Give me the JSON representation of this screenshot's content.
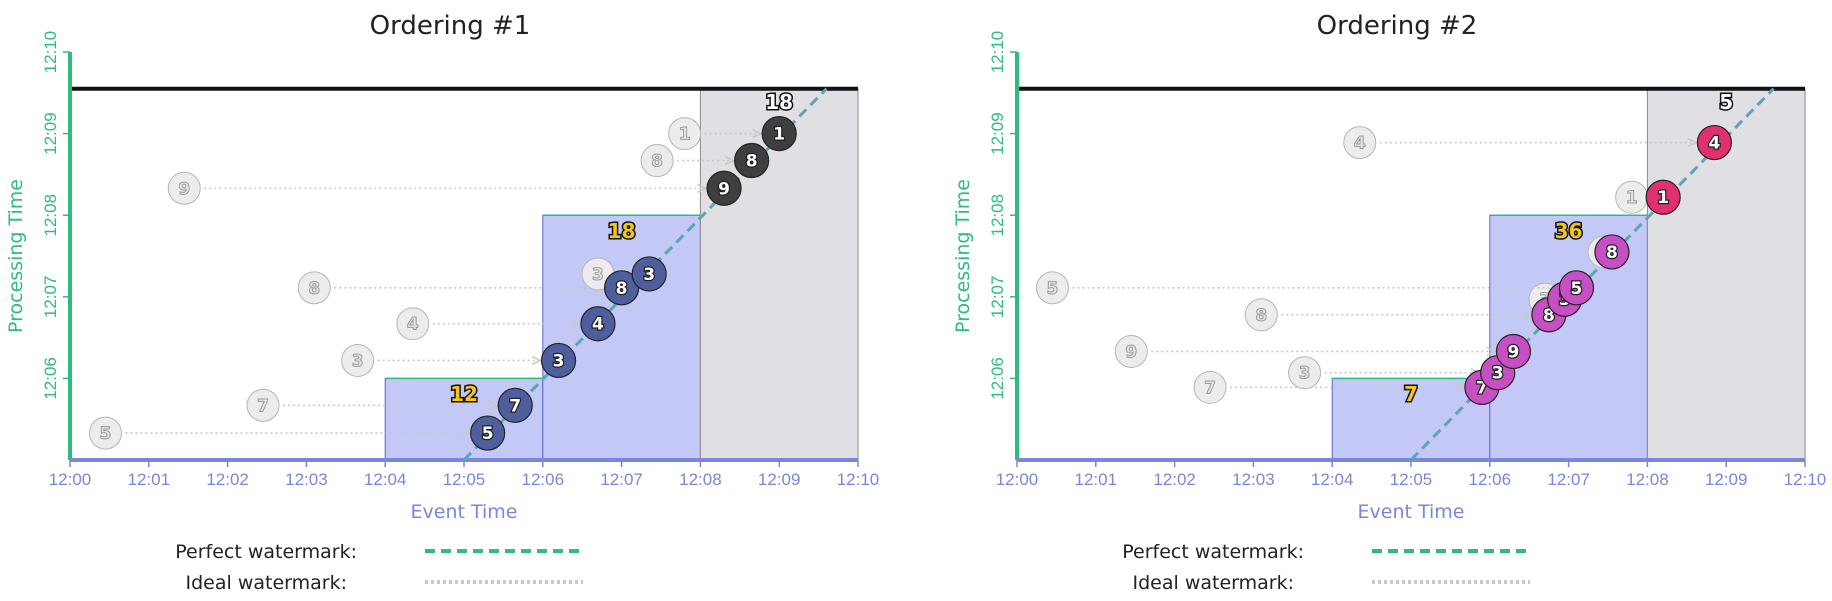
{
  "legend": {
    "perfect_label": "Perfect watermark:",
    "ideal_label": "Ideal watermark:",
    "perfect_color": "#2dbb7f",
    "ideal_color": "#c8c8c8"
  },
  "colors": {
    "processing_axis": "#2dbb7f",
    "event_axis": "#7a86dd",
    "window_fill": "#c3c8f7",
    "window_stroke": "#5a67c8",
    "late_window_fill": "#e0dfe3",
    "ghost_fill": "#ececec",
    "ghost_stroke": "#b5b5b5",
    "sum_color": "#f5c518"
  },
  "chart_data": [
    {
      "type": "scatter",
      "title": "Ordering #1",
      "xlabel": "Event Time",
      "ylabel": "Processing Time",
      "xticks": [
        "12:00",
        "12:01",
        "12:02",
        "12:03",
        "12:04",
        "12:05",
        "12:06",
        "12:07",
        "12:08",
        "12:09",
        "12:10"
      ],
      "yticks": [
        "12:06",
        "12:07",
        "12:08",
        "12:09",
        "12:10"
      ],
      "xlim": [
        0,
        10
      ],
      "ylim": [
        5,
        10
      ],
      "windows": [
        {
          "x0": 4,
          "x1": 6,
          "top": 6.0,
          "sum": "12",
          "sum_x": 5.0,
          "sum_y": 5.72,
          "color": "#f5c518",
          "late": false
        },
        {
          "x0": 6,
          "x1": 8,
          "top": 8.0,
          "sum": "18",
          "sum_x": 7.0,
          "sum_y": 7.72,
          "color": "#f5c518",
          "late": false
        },
        {
          "x0": 8,
          "x1": 10,
          "top": 9.55,
          "sum": "18",
          "sum_x": 9.0,
          "sum_y": 9.3,
          "color": "#ffffff",
          "late": true
        }
      ],
      "watermark": [
        [
          5.0,
          5.0
        ],
        [
          9.6,
          9.55
        ]
      ],
      "bar_y": 9.55,
      "points": [
        {
          "value": "5",
          "x": 5.3,
          "y": 5.33,
          "gx": 0.45,
          "gy": 5.33,
          "fill": "#4f5f9e"
        },
        {
          "value": "7",
          "x": 5.65,
          "y": 5.67,
          "gx": 2.45,
          "gy": 5.67,
          "fill": "#4f5f9e"
        },
        {
          "value": "3",
          "x": 6.2,
          "y": 6.22,
          "gx": 3.65,
          "gy": 6.22,
          "fill": "#4f5f9e"
        },
        {
          "value": "4",
          "x": 6.7,
          "y": 6.67,
          "gx": 4.35,
          "gy": 6.67,
          "fill": "#4f5f9e"
        },
        {
          "value": "8",
          "x": 7.0,
          "y": 7.11,
          "gx": 3.1,
          "gy": 7.11,
          "fill": "#4f5f9e"
        },
        {
          "value": "3",
          "x": 7.35,
          "y": 7.28,
          "gx": 6.7,
          "gy": 7.28,
          "fill": "#4f5f9e"
        },
        {
          "value": "9",
          "x": 8.3,
          "y": 8.33,
          "gx": 1.45,
          "gy": 8.33,
          "fill": "#3f3f3f"
        },
        {
          "value": "8",
          "x": 8.65,
          "y": 8.67,
          "gx": 7.45,
          "gy": 8.67,
          "fill": "#3f3f3f"
        },
        {
          "value": "1",
          "x": 9.0,
          "y": 9.0,
          "gx": 7.8,
          "gy": 9.0,
          "fill": "#3f3f3f"
        }
      ]
    },
    {
      "type": "scatter",
      "title": "Ordering #2",
      "xlabel": "Event Time",
      "ylabel": "Processing Time",
      "xticks": [
        "12:00",
        "12:01",
        "12:02",
        "12:03",
        "12:04",
        "12:05",
        "12:06",
        "12:07",
        "12:08",
        "12:09",
        "12:10"
      ],
      "yticks": [
        "12:06",
        "12:07",
        "12:08",
        "12:09",
        "12:10"
      ],
      "xlim": [
        0,
        10
      ],
      "ylim": [
        5,
        10
      ],
      "windows": [
        {
          "x0": 4,
          "x1": 6,
          "top": 6.0,
          "sum": "7",
          "sum_x": 5.0,
          "sum_y": 5.72,
          "color": "#f5c518",
          "late": false
        },
        {
          "x0": 6,
          "x1": 8,
          "top": 8.0,
          "sum": "36",
          "sum_x": 7.0,
          "sum_y": 7.72,
          "color": "#f5c518",
          "late": false
        },
        {
          "x0": 8,
          "x1": 10,
          "top": 9.55,
          "sum": "5",
          "sum_x": 9.0,
          "sum_y": 9.3,
          "color": "#ffffff",
          "late": true
        }
      ],
      "watermark": [
        [
          5.0,
          5.0
        ],
        [
          9.6,
          9.55
        ]
      ],
      "bar_y": 9.55,
      "points": [
        {
          "value": "7",
          "x": 5.9,
          "y": 5.89,
          "gx": 2.45,
          "gy": 5.89,
          "fill": "#c74fc4"
        },
        {
          "value": "3",
          "x": 6.1,
          "y": 6.07,
          "gx": 3.65,
          "gy": 6.07,
          "fill": "#c74fc4"
        },
        {
          "value": "9",
          "x": 6.3,
          "y": 6.33,
          "gx": 1.45,
          "gy": 6.33,
          "fill": "#c74fc4"
        },
        {
          "value": "8",
          "x": 6.75,
          "y": 6.78,
          "gx": 3.1,
          "gy": 6.78,
          "fill": "#c74fc4"
        },
        {
          "value": "3",
          "x": 6.95,
          "y": 6.97,
          "gx": 6.7,
          "gy": 6.97,
          "fill": "#c74fc4"
        },
        {
          "value": "5",
          "x": 7.1,
          "y": 7.11,
          "gx": 0.45,
          "gy": 7.11,
          "fill": "#c74fc4"
        },
        {
          "value": "8",
          "x": 7.55,
          "y": 7.55,
          "gx": 7.45,
          "gy": 7.55,
          "fill": "#c74fc4"
        },
        {
          "value": "1",
          "x": 8.2,
          "y": 8.22,
          "gx": 7.8,
          "gy": 8.22,
          "fill": "#e0306f"
        },
        {
          "value": "4",
          "x": 8.85,
          "y": 8.89,
          "gx": 4.35,
          "gy": 8.89,
          "fill": "#e0306f"
        }
      ]
    }
  ]
}
